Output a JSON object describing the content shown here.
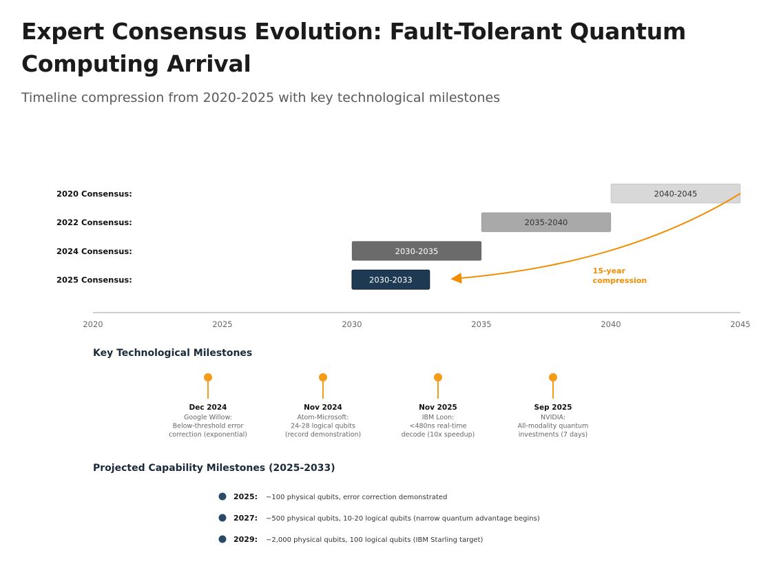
{
  "title": "Expert Consensus Evolution: Fault-Tolerant Quantum Computing Arrival",
  "subtitle": "Timeline compression from 2020-2025 with key technological milestones",
  "chart_data": {
    "type": "timeline",
    "xlim": [
      2020,
      2045
    ],
    "ticks": [
      2020,
      2025,
      2030,
      2035,
      2040,
      2045
    ],
    "rows": [
      {
        "label": "2020 Consensus:",
        "start": 2040,
        "end": 2045,
        "range_label": "2040-2045",
        "color": "#d8d8d8",
        "text_color": "#333333"
      },
      {
        "label": "2022 Consensus:",
        "start": 2035,
        "end": 2040,
        "range_label": "2035-2040",
        "color": "#a9a9a9",
        "text_color": "#333333"
      },
      {
        "label": "2024 Consensus:",
        "start": 2030,
        "end": 2035,
        "range_label": "2030-2035",
        "color": "#6b6b6b",
        "text_color": "#ffffff"
      },
      {
        "label": "2025 Consensus:",
        "start": 2030,
        "end": 2033,
        "range_label": "2030-2033",
        "color": "#1e3a52",
        "text_color": "#ffffff"
      }
    ],
    "annotation": {
      "line1": "15-year",
      "line2": "compression",
      "color": "#f28c00"
    }
  },
  "milestones": {
    "heading": "Key Technological Milestones",
    "color": "#f59b1a",
    "items": [
      {
        "date": "Dec 2024",
        "lines": [
          "Google Willow:",
          "Below-threshold error",
          "correction (exponential)"
        ]
      },
      {
        "date": "Nov 2024",
        "lines": [
          "Atom-Microsoft:",
          "24-28 logical qubits",
          "(record demonstration)"
        ]
      },
      {
        "date": "Nov 2025",
        "lines": [
          "IBM Loon:",
          "<480ns real-time",
          "decode (10x speedup)"
        ]
      },
      {
        "date": "Sep 2025",
        "lines": [
          "NVIDIA:",
          "All-modality quantum",
          "investments (7 days)"
        ]
      }
    ]
  },
  "projected": {
    "heading": "Projected Capability Milestones (2025-2033)",
    "color": "#2a4a68",
    "items": [
      {
        "year": "2025:",
        "text": "~100 physical qubits, error correction demonstrated"
      },
      {
        "year": "2027:",
        "text": "~500 physical qubits, 10-20 logical qubits (narrow quantum advantage begins)"
      },
      {
        "year": "2029:",
        "text": "~2,000 physical qubits, 100 logical qubits (IBM Starling target)"
      }
    ]
  }
}
